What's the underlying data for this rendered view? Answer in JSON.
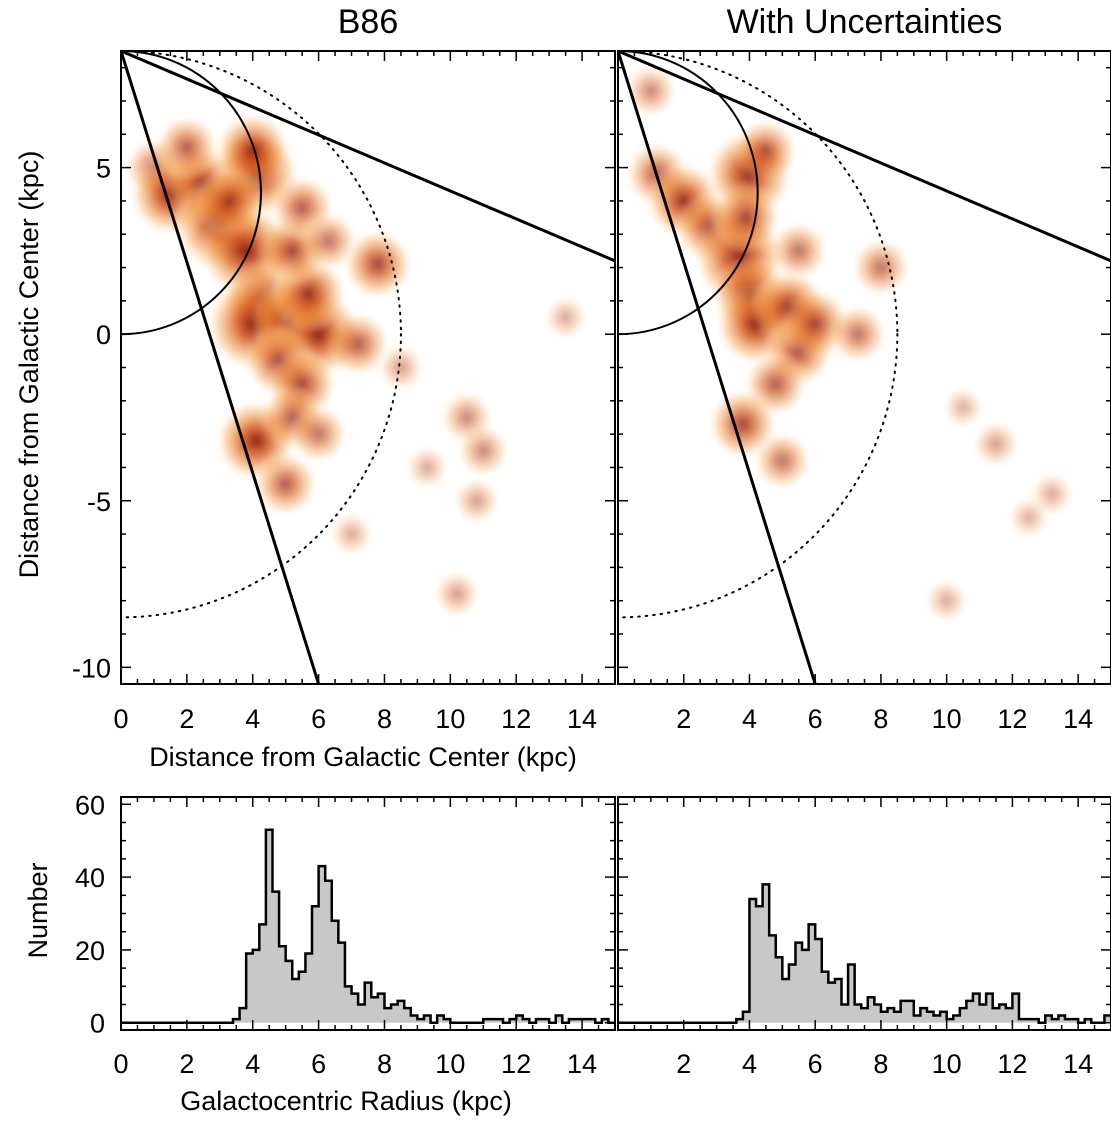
{
  "chart_data": [
    {
      "type": "heatmap",
      "panel": "map-left",
      "title": "B86",
      "xlabel": "Distance from Galactic Center (kpc)",
      "ylabel": "Distance from Galactic Center (kpc)",
      "xlim": [
        0,
        15
      ],
      "ylim": [
        -10.5,
        8.5
      ],
      "xticks": [
        0,
        2,
        4,
        6,
        8,
        10,
        12,
        14
      ],
      "yticks": [
        -10,
        -5,
        0,
        5
      ],
      "colormap": [
        "#ffffff",
        "#f6b04a",
        "#e0701d",
        "#b8380e",
        "#6b0f07"
      ],
      "sun_position": [
        0,
        8.5
      ],
      "circles": [
        {
          "name": "solar-circle",
          "center": [
            0,
            0
          ],
          "radius_kpc": 8.5,
          "style": "dotted"
        },
        {
          "name": "tangent-circle",
          "center": [
            0,
            4.25
          ],
          "radius_kpc": 4.25,
          "style": "solid"
        }
      ],
      "survey_boundaries": [
        {
          "from": [
            0,
            8.5
          ],
          "to": [
            6,
            -10.5
          ]
        },
        {
          "from": [
            0,
            8.5
          ],
          "to": [
            15,
            2.2
          ]
        }
      ],
      "blobs": [
        {
          "x": 1.0,
          "y": 5.0,
          "w": 0.4
        },
        {
          "x": 1.5,
          "y": 4.2,
          "w": 0.8
        },
        {
          "x": 2.5,
          "y": 4.5,
          "w": 0.7
        },
        {
          "x": 3.0,
          "y": 3.3,
          "w": 1.0
        },
        {
          "x": 3.8,
          "y": 2.5,
          "w": 1.0
        },
        {
          "x": 4.1,
          "y": 4.8,
          "w": 0.9
        },
        {
          "x": 4.0,
          "y": 5.5,
          "w": 0.7
        },
        {
          "x": 3.3,
          "y": 4.0,
          "w": 0.6
        },
        {
          "x": 4.3,
          "y": 1.0,
          "w": 0.8
        },
        {
          "x": 4.0,
          "y": 0.3,
          "w": 1.0
        },
        {
          "x": 5.1,
          "y": 0.4,
          "w": 0.7
        },
        {
          "x": 6.0,
          "y": 0.0,
          "w": 0.9
        },
        {
          "x": 5.7,
          "y": 1.2,
          "w": 0.7
        },
        {
          "x": 5.2,
          "y": 2.5,
          "w": 0.6
        },
        {
          "x": 4.8,
          "y": -0.8,
          "w": 0.6
        },
        {
          "x": 5.5,
          "y": -1.5,
          "w": 0.6
        },
        {
          "x": 7.2,
          "y": -0.3,
          "w": 0.5
        },
        {
          "x": 7.8,
          "y": 2.1,
          "w": 0.6
        },
        {
          "x": 4.1,
          "y": -3.2,
          "w": 0.8
        },
        {
          "x": 5.0,
          "y": -4.5,
          "w": 0.5
        },
        {
          "x": 5.2,
          "y": -2.5,
          "w": 0.5
        },
        {
          "x": 6.0,
          "y": -3.0,
          "w": 0.4
        },
        {
          "x": 5.5,
          "y": 3.8,
          "w": 0.5
        },
        {
          "x": 6.3,
          "y": 2.8,
          "w": 0.4
        },
        {
          "x": 10.5,
          "y": -2.5,
          "w": 0.3
        },
        {
          "x": 11.0,
          "y": -3.5,
          "w": 0.3
        },
        {
          "x": 10.8,
          "y": -5.0,
          "w": 0.2
        },
        {
          "x": 10.2,
          "y": -7.8,
          "w": 0.2
        },
        {
          "x": 8.5,
          "y": -1.0,
          "w": 0.2
        },
        {
          "x": 13.5,
          "y": 0.5,
          "w": 0.15
        },
        {
          "x": 7.0,
          "y": -6.0,
          "w": 0.15
        },
        {
          "x": 9.3,
          "y": -4.0,
          "w": 0.15
        },
        {
          "x": 2.0,
          "y": 5.6,
          "w": 0.5
        }
      ]
    },
    {
      "type": "heatmap",
      "panel": "map-right",
      "title": "With Uncertainties",
      "xlim": [
        0,
        15
      ],
      "ylim": [
        -10.5,
        8.5
      ],
      "xticks": [
        2,
        4,
        6,
        8,
        10,
        12,
        14
      ],
      "colormap": [
        "#ffffff",
        "#f6b04a",
        "#e0701d",
        "#b8380e",
        "#6b0f07"
      ],
      "sun_position": [
        0,
        8.5
      ],
      "circles": [
        {
          "name": "solar-circle",
          "center": [
            0,
            0
          ],
          "radius_kpc": 8.5,
          "style": "dotted"
        },
        {
          "name": "tangent-circle",
          "center": [
            0,
            4.25
          ],
          "radius_kpc": 4.25,
          "style": "solid"
        }
      ],
      "survey_boundaries": [
        {
          "from": [
            0,
            8.5
          ],
          "to": [
            6,
            -10.5
          ]
        },
        {
          "from": [
            0,
            8.5
          ],
          "to": [
            15,
            2.2
          ]
        }
      ],
      "blobs": [
        {
          "x": 1.2,
          "y": 4.8,
          "w": 0.5
        },
        {
          "x": 2.0,
          "y": 4.0,
          "w": 0.7
        },
        {
          "x": 2.8,
          "y": 3.2,
          "w": 0.6
        },
        {
          "x": 3.7,
          "y": 2.3,
          "w": 1.0
        },
        {
          "x": 4.0,
          "y": 4.8,
          "w": 0.9
        },
        {
          "x": 3.9,
          "y": 3.5,
          "w": 0.6
        },
        {
          "x": 4.0,
          "y": 1.2,
          "w": 0.7
        },
        {
          "x": 4.2,
          "y": 0.3,
          "w": 0.8
        },
        {
          "x": 5.2,
          "y": 0.8,
          "w": 0.7
        },
        {
          "x": 5.5,
          "y": -0.5,
          "w": 0.6
        },
        {
          "x": 6.0,
          "y": 0.3,
          "w": 0.6
        },
        {
          "x": 4.8,
          "y": -1.5,
          "w": 0.5
        },
        {
          "x": 3.8,
          "y": -2.7,
          "w": 0.6
        },
        {
          "x": 5.0,
          "y": -3.8,
          "w": 0.4
        },
        {
          "x": 7.3,
          "y": 0.0,
          "w": 0.4
        },
        {
          "x": 8.0,
          "y": 2.0,
          "w": 0.4
        },
        {
          "x": 4.5,
          "y": 5.5,
          "w": 0.5
        },
        {
          "x": 5.5,
          "y": 2.5,
          "w": 0.4
        },
        {
          "x": 1.0,
          "y": 7.3,
          "w": 0.3
        },
        {
          "x": 11.5,
          "y": -3.3,
          "w": 0.2
        },
        {
          "x": 13.2,
          "y": -4.8,
          "w": 0.15
        },
        {
          "x": 10.0,
          "y": -8.0,
          "w": 0.15
        },
        {
          "x": 10.5,
          "y": -2.2,
          "w": 0.12
        },
        {
          "x": 12.5,
          "y": -5.5,
          "w": 0.12
        }
      ]
    },
    {
      "type": "bar",
      "panel": "hist-left",
      "style": "step-histogram",
      "xlabel": "Galactocentric Radius (kpc)",
      "ylabel": "Number",
      "xlim": [
        0,
        15
      ],
      "ylim": [
        -2,
        62
      ],
      "xticks": [
        0,
        2,
        4,
        6,
        8,
        10,
        12,
        14
      ],
      "yticks": [
        0,
        20,
        40,
        60
      ],
      "bin_width": 0.2,
      "bin_start": 0,
      "fill": "#c8c8c8",
      "values": [
        0,
        0,
        0,
        0,
        0,
        0,
        0,
        0,
        0,
        0,
        0,
        0,
        0,
        0,
        0,
        0,
        0,
        1,
        4,
        19,
        20,
        27,
        53,
        36,
        21,
        17,
        12,
        14,
        19,
        32,
        43,
        39,
        28,
        22,
        10,
        8,
        5,
        11,
        7,
        8,
        4,
        5,
        6,
        4,
        2,
        1,
        2,
        0,
        2,
        1,
        0,
        0,
        0,
        0,
        0,
        1,
        1,
        1,
        0,
        1,
        2,
        1,
        0,
        1,
        1,
        0,
        2,
        0,
        1,
        1,
        1,
        1,
        0,
        1,
        0
      ]
    },
    {
      "type": "bar",
      "panel": "hist-right",
      "style": "step-histogram",
      "xlim": [
        0,
        15
      ],
      "ylim": [
        -2,
        62
      ],
      "xticks": [
        2,
        4,
        6,
        8,
        10,
        12,
        14
      ],
      "bin_width": 0.2,
      "bin_start": 0,
      "fill": "#c8c8c8",
      "values": [
        0,
        0,
        0,
        0,
        0,
        0,
        0,
        0,
        0,
        0,
        0,
        0,
        0,
        0,
        0,
        0,
        0,
        0,
        1,
        3,
        34,
        32,
        38,
        24,
        18,
        12,
        16,
        22,
        20,
        27,
        23,
        14,
        11,
        12,
        5,
        16,
        5,
        4,
        7,
        5,
        3,
        4,
        3,
        6,
        6,
        2,
        4,
        3,
        2,
        3,
        1,
        2,
        4,
        6,
        8,
        5,
        8,
        4,
        5,
        4,
        8,
        1,
        1,
        1,
        0,
        2,
        1,
        2,
        1,
        1,
        0,
        1,
        0,
        0,
        2
      ]
    }
  ]
}
